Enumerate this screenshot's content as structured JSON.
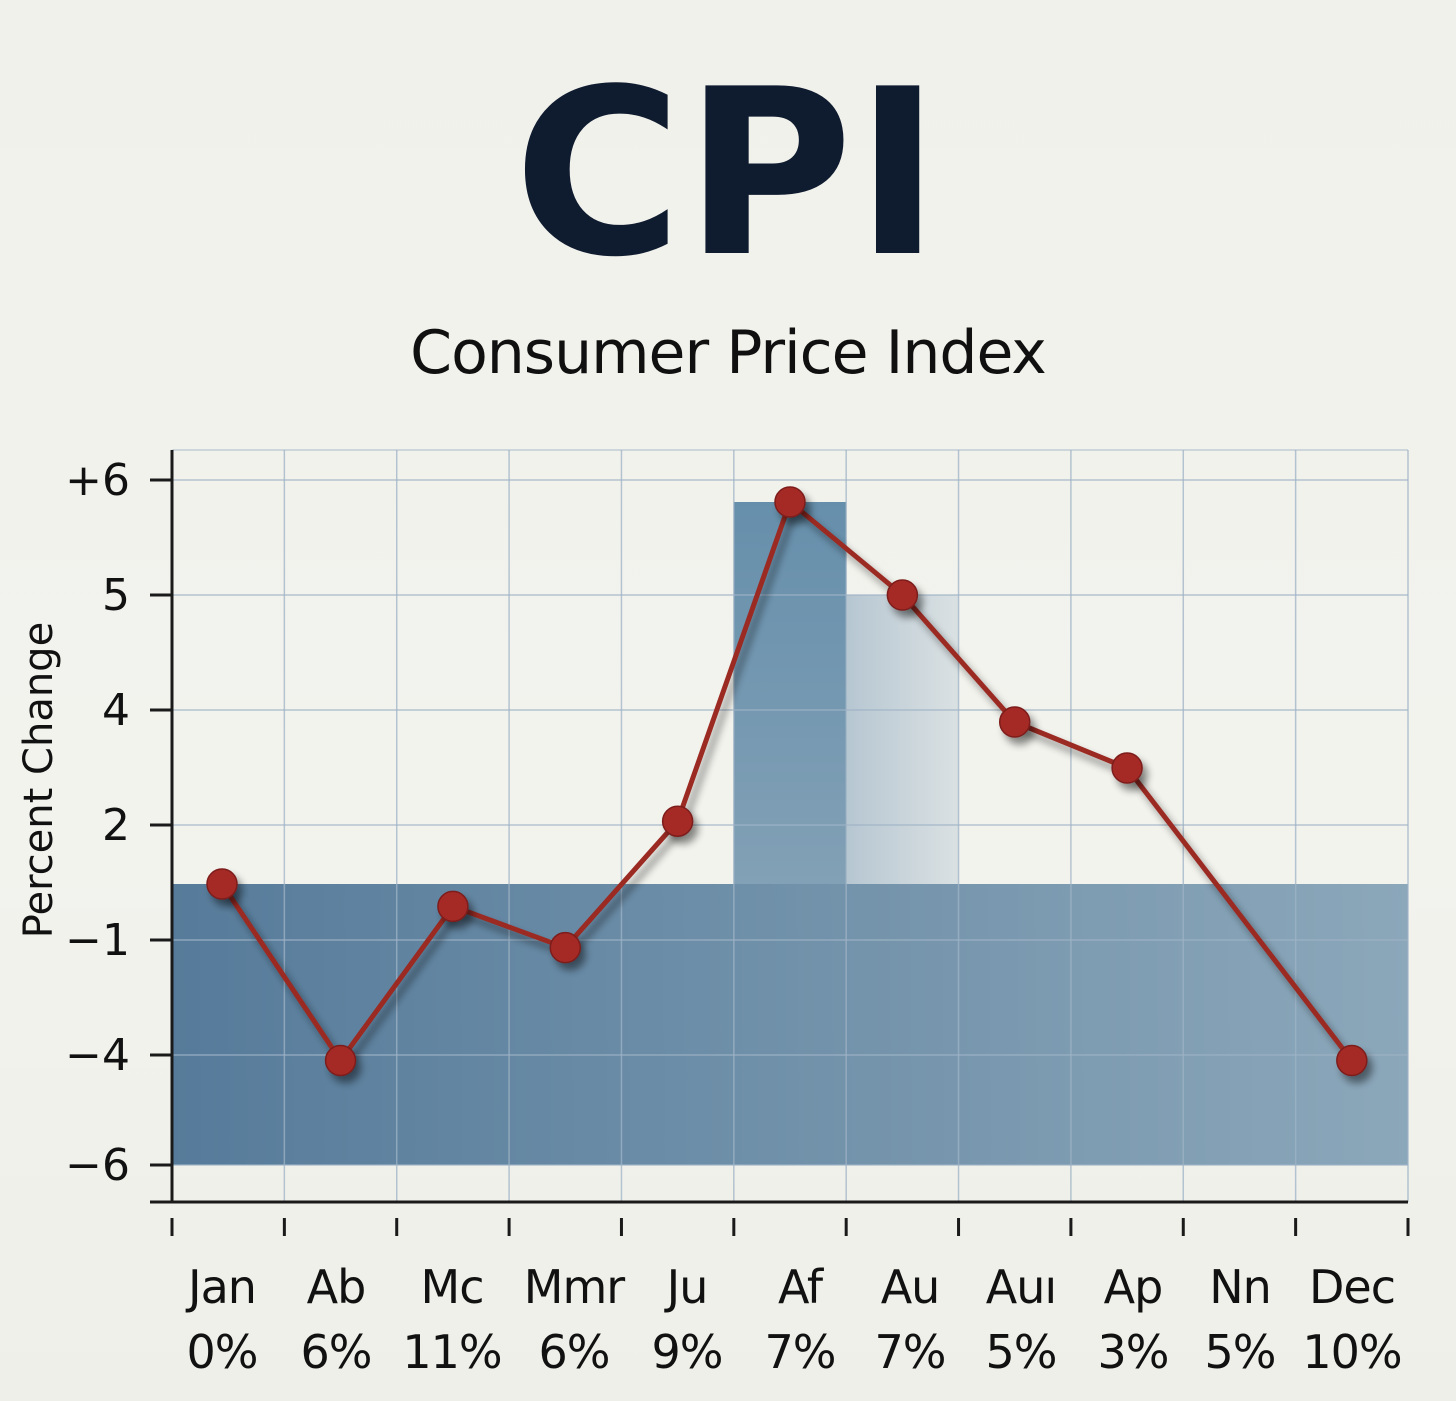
{
  "chart_data": {
    "type": "line",
    "title": "CPI",
    "subtitle": "Consumer Price Index",
    "ylabel": "Percent Change",
    "xlabel": "",
    "ytick_labels": [
      "+6",
      "5",
      "4",
      "2",
      "-1",
      "-4",
      "-6"
    ],
    "categories": [
      "Jan",
      "Ab",
      "Mc",
      "Mmr",
      "Ju",
      "Af",
      "Au",
      "Auı",
      "Ap",
      "Nn",
      "Dec"
    ],
    "category_percents": [
      "0%",
      "6%",
      "11%",
      "6%",
      "9%",
      "7%",
      "7%",
      "5%",
      "3%",
      "5%",
      "10%"
    ],
    "series": [
      {
        "name": "CPI",
        "values": [
          0.0,
          -4.1,
          -0.4,
          -1.2,
          2.1,
          5.8,
          5.0,
          3.9,
          3.5,
          null,
          -4.1
        ]
      }
    ],
    "point_x": [
      0.5,
      1.5,
      2.5,
      3.5,
      4.5,
      5.5,
      6.5,
      7.5,
      8.5,
      null,
      10.5
    ],
    "shaded_regions": [
      {
        "x_from": 0,
        "x_to": 11,
        "y_from": -6,
        "y_to": 0
      },
      {
        "x_from": 5,
        "x_to": 6,
        "y_from": 0,
        "y_to": 5.8
      },
      {
        "x_from": 6,
        "x_to": 7,
        "y_from": 0,
        "y_to": 5.0
      }
    ],
    "colors": {
      "line": "#9a2a24",
      "marker": "#a52b25",
      "fill_dark": "#4e7596",
      "fill_light": "#bccbd5",
      "axis": "#1a1a1a",
      "grid": "#9fb3c6"
    },
    "grid": true
  }
}
